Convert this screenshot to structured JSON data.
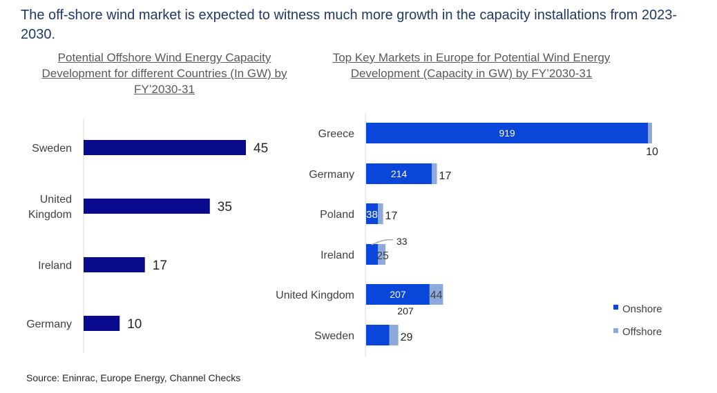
{
  "headline": "The off-shore wind market is expected to witness much more growth in the capacity installations from 2023-2030.",
  "source": "Source: Eninrac,  Europe  Energy, Channel Checks",
  "colors": {
    "navy": "#0a0a8c",
    "onshore": "#0a46d9",
    "offshore": "#8eaadb"
  },
  "chart_data": [
    {
      "type": "bar",
      "orientation": "horizontal",
      "title": "Potential Offshore Wind Energy Capacity Development for different Countries (In GW) by FY’2030-31",
      "categories": [
        [
          "Sweden"
        ],
        [
          "United",
          "Kingdom"
        ],
        [
          "Ireland"
        ],
        [
          "Germany"
        ]
      ],
      "values": [
        45,
        35,
        17,
        10
      ],
      "xlim": [
        0,
        50
      ],
      "grid": false
    },
    {
      "type": "bar",
      "orientation": "horizontal",
      "stacked": true,
      "title": "Top Key Markets in  Europe  for Potential Wind Energy Development (Capacity in GW) by FY’2030-31",
      "categories": [
        "Greece",
        "Germany",
        "Poland",
        "Ireland",
        "United Kingdom",
        "Sweden"
      ],
      "series": [
        {
          "name": "Onshore",
          "values": [
            919,
            214,
            38,
            33,
            207,
            76
          ]
        },
        {
          "name": "Offshore",
          "values": [
            10,
            17,
            17,
            25,
            44,
            29
          ]
        }
      ],
      "legend": "bottom-right",
      "grid": false
    }
  ]
}
